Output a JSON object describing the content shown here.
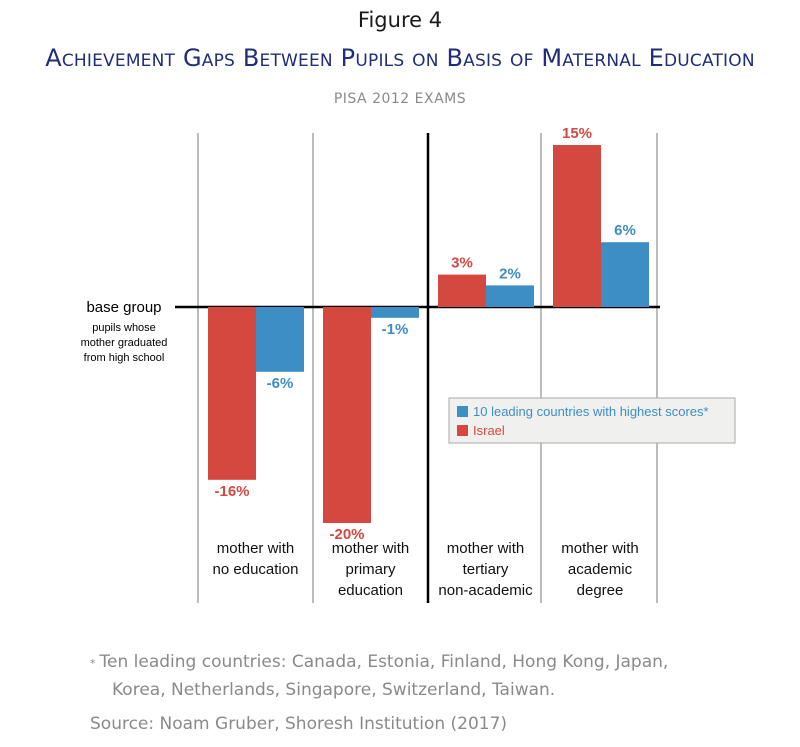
{
  "figure_label": "Figure 4",
  "title": "Achievement Gaps Between Pupils on Basis of Maternal Education",
  "subtitle": "PISA 2012 EXAMS",
  "chart_data": {
    "type": "bar",
    "title": "Achievement Gaps Between Pupils on Basis of Maternal Education",
    "subtitle": "PISA 2012 EXAMS",
    "categories": [
      [
        "mother with",
        "no education"
      ],
      [
        "mother with",
        "primary",
        "education"
      ],
      [
        "mother with",
        "tertiary",
        "non-academic"
      ],
      [
        "mother with",
        "academic",
        "degree"
      ]
    ],
    "series": [
      {
        "name": "Israel",
        "values": [
          -16,
          -20,
          3,
          15
        ],
        "labels": [
          "-16%",
          "-20%",
          "3%",
          "15%"
        ],
        "color": "#d44840"
      },
      {
        "name": "10 leading countries with highest scores*",
        "values": [
          -6,
          -1,
          2,
          6
        ],
        "labels": [
          "-6%",
          "-1%",
          "2%",
          "6%"
        ],
        "color": "#3d8ec4"
      }
    ],
    "unit": "%",
    "ylim": [
      -21,
      16
    ],
    "baseline": {
      "label": "base group",
      "sublabel": [
        "pupils whose",
        "mother graduated",
        "from high school"
      ]
    },
    "legend": {
      "position": "middle-right",
      "entries": [
        "10 leading countries with highest scores*",
        "Israel"
      ]
    },
    "grid": false
  },
  "footnote": {
    "marker": "*",
    "line1": "Ten leading countries: Canada, Estonia, Finland, Hong Kong, Japan,",
    "line2": "Korea, Netherlands, Singapore, Switzerland, Taiwan."
  },
  "source": "Source: Noam Gruber, Shoresh Institution (2017)"
}
